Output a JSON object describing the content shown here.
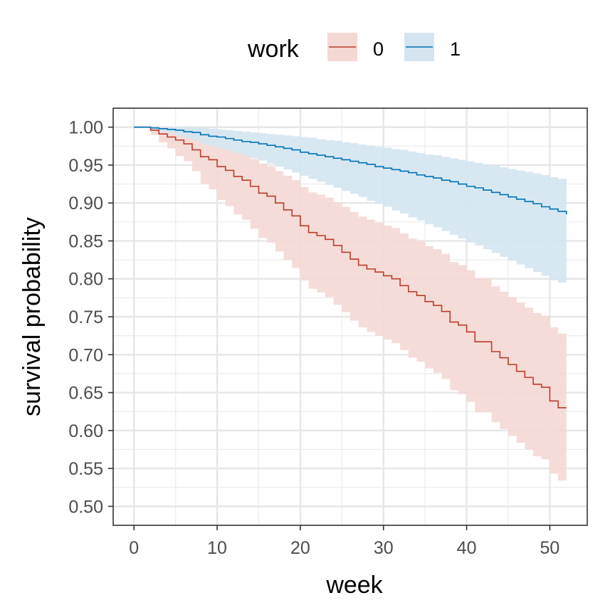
{
  "chart_data": {
    "type": "step",
    "xlabel": "week",
    "ylabel": "survival probability",
    "xlim": [
      -2.5,
      54.5
    ],
    "ylim": [
      0.475,
      1.025
    ],
    "x_ticks": [
      0,
      10,
      20,
      30,
      40,
      50
    ],
    "y_ticks": [
      0.5,
      0.55,
      0.6,
      0.65,
      0.7,
      0.75,
      0.8,
      0.85,
      0.9,
      0.95,
      1.0
    ],
    "y_tick_labels": [
      "0.50",
      "0.55",
      "0.60",
      "0.65",
      "0.70",
      "0.75",
      "0.80",
      "0.85",
      "0.90",
      "0.95",
      "1.00"
    ],
    "grid": true,
    "legend": {
      "title": "work",
      "position": "top"
    },
    "series": [
      {
        "name": "0",
        "color": "#bc3c29",
        "fill": "#f4d8d4",
        "x": [
          0,
          1,
          2,
          3,
          4,
          5,
          6,
          7,
          8,
          9,
          10,
          11,
          12,
          13,
          14,
          15,
          16,
          17,
          18,
          19,
          20,
          21,
          22,
          23,
          24,
          25,
          26,
          27,
          28,
          29,
          30,
          31,
          32,
          33,
          34,
          35,
          36,
          37,
          38,
          39,
          40,
          41,
          42,
          43,
          44,
          45,
          46,
          47,
          48,
          49,
          50,
          51,
          52
        ],
        "y": [
          1.0,
          1.0,
          0.996,
          0.991,
          0.987,
          0.983,
          0.978,
          0.97,
          0.961,
          0.957,
          0.948,
          0.943,
          0.935,
          0.93,
          0.922,
          0.913,
          0.909,
          0.9,
          0.891,
          0.883,
          0.87,
          0.861,
          0.857,
          0.852,
          0.844,
          0.835,
          0.826,
          0.818,
          0.813,
          0.809,
          0.804,
          0.8,
          0.791,
          0.783,
          0.778,
          0.77,
          0.765,
          0.757,
          0.743,
          0.739,
          0.73,
          0.717,
          0.717,
          0.704,
          0.696,
          0.687,
          0.678,
          0.67,
          0.661,
          0.657,
          0.639,
          0.63,
          0.63
        ],
        "lower": [
          1.0,
          1.0,
          0.99,
          0.98,
          0.972,
          0.962,
          0.955,
          0.942,
          0.925,
          0.918,
          0.904,
          0.896,
          0.885,
          0.878,
          0.866,
          0.854,
          0.848,
          0.836,
          0.825,
          0.814,
          0.798,
          0.787,
          0.782,
          0.776,
          0.766,
          0.756,
          0.745,
          0.736,
          0.73,
          0.725,
          0.72,
          0.715,
          0.706,
          0.696,
          0.691,
          0.682,
          0.676,
          0.668,
          0.653,
          0.648,
          0.638,
          0.624,
          0.624,
          0.611,
          0.602,
          0.593,
          0.584,
          0.575,
          0.566,
          0.562,
          0.543,
          0.534,
          0.534
        ],
        "upper": [
          1.0,
          1.0,
          1.0,
          1.0,
          1.0,
          1.0,
          1.0,
          0.998,
          0.988,
          0.985,
          0.978,
          0.974,
          0.968,
          0.964,
          0.958,
          0.952,
          0.948,
          0.942,
          0.936,
          0.93,
          0.921,
          0.914,
          0.911,
          0.907,
          0.901,
          0.895,
          0.888,
          0.882,
          0.878,
          0.874,
          0.87,
          0.867,
          0.86,
          0.853,
          0.85,
          0.843,
          0.839,
          0.833,
          0.822,
          0.818,
          0.811,
          0.801,
          0.801,
          0.79,
          0.783,
          0.776,
          0.769,
          0.762,
          0.755,
          0.751,
          0.736,
          0.728,
          0.728
        ]
      },
      {
        "name": "1",
        "color": "#0072b5",
        "fill": "#d4e5f1",
        "x": [
          0,
          1,
          2,
          3,
          4,
          5,
          6,
          7,
          8,
          9,
          10,
          11,
          12,
          13,
          14,
          15,
          16,
          17,
          18,
          19,
          20,
          21,
          22,
          23,
          24,
          25,
          26,
          27,
          28,
          29,
          30,
          31,
          32,
          33,
          34,
          35,
          36,
          37,
          38,
          39,
          40,
          41,
          42,
          43,
          44,
          45,
          46,
          47,
          48,
          49,
          50,
          51,
          52
        ],
        "y": [
          1.0,
          1.0,
          0.999,
          0.998,
          0.997,
          0.996,
          0.994,
          0.993,
          0.99,
          0.988,
          0.987,
          0.985,
          0.983,
          0.981,
          0.98,
          0.978,
          0.976,
          0.974,
          0.972,
          0.97,
          0.967,
          0.965,
          0.963,
          0.961,
          0.959,
          0.957,
          0.955,
          0.953,
          0.951,
          0.948,
          0.946,
          0.944,
          0.942,
          0.94,
          0.937,
          0.935,
          0.933,
          0.93,
          0.928,
          0.925,
          0.922,
          0.92,
          0.917,
          0.914,
          0.911,
          0.908,
          0.905,
          0.902,
          0.899,
          0.895,
          0.892,
          0.889,
          0.885
        ],
        "lower": [
          1.0,
          1.0,
          0.997,
          0.994,
          0.992,
          0.989,
          0.986,
          0.983,
          0.978,
          0.975,
          0.972,
          0.969,
          0.966,
          0.962,
          0.959,
          0.956,
          0.952,
          0.948,
          0.944,
          0.94,
          0.936,
          0.932,
          0.928,
          0.924,
          0.92,
          0.916,
          0.912,
          0.908,
          0.903,
          0.899,
          0.895,
          0.89,
          0.886,
          0.881,
          0.877,
          0.872,
          0.868,
          0.863,
          0.858,
          0.853,
          0.848,
          0.844,
          0.839,
          0.834,
          0.829,
          0.824,
          0.819,
          0.814,
          0.809,
          0.804,
          0.798,
          0.795,
          0.795
        ],
        "upper": [
          1.0,
          1.0,
          1.0,
          1.0,
          1.0,
          1.0,
          1.0,
          1.0,
          0.999,
          0.998,
          0.997,
          0.996,
          0.995,
          0.994,
          0.993,
          0.992,
          0.991,
          0.99,
          0.989,
          0.988,
          0.987,
          0.986,
          0.984,
          0.983,
          0.982,
          0.98,
          0.979,
          0.977,
          0.976,
          0.974,
          0.973,
          0.971,
          0.97,
          0.968,
          0.966,
          0.964,
          0.963,
          0.961,
          0.959,
          0.957,
          0.955,
          0.953,
          0.951,
          0.949,
          0.947,
          0.945,
          0.943,
          0.941,
          0.939,
          0.937,
          0.934,
          0.932,
          0.932
        ]
      }
    ]
  }
}
